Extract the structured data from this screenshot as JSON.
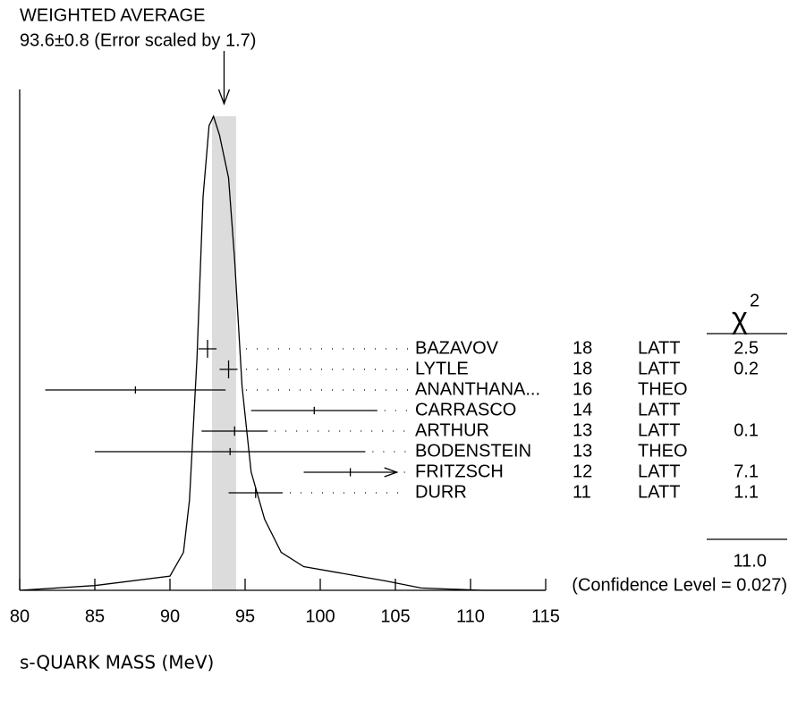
{
  "chart_data": {
    "type": "ideogram",
    "title": "WEIGHTED AVERAGE",
    "subtitle": "93.6±0.8 (Error scaled by 1.7)",
    "average": {
      "value": 93.6,
      "error": 0.8
    },
    "xlabel": "s-QUARK MASS (MeV)",
    "xlim": [
      80,
      115
    ],
    "xticks": [
      80,
      85,
      90,
      95,
      100,
      105,
      110,
      115
    ],
    "ylim": [
      0,
      1
    ],
    "curve": {
      "x": [
        80,
        85,
        90,
        90.9,
        91.3,
        91.8,
        92.2,
        92.6,
        92.9,
        93.3,
        93.9,
        94.3,
        94.8,
        95.4,
        96.3,
        97.4,
        98.9,
        100.7,
        102.5,
        104.3,
        106.7,
        110.8,
        115
      ],
      "y": [
        0.0,
        0.01,
        0.03,
        0.08,
        0.19,
        0.49,
        0.83,
        0.98,
        1.0,
        0.96,
        0.87,
        0.7,
        0.43,
        0.25,
        0.15,
        0.08,
        0.05,
        0.04,
        0.03,
        0.02,
        0.005,
        0.0,
        0.0
      ]
    },
    "chi2_header": "χ",
    "chi2_power": "2",
    "measurements": [
      {
        "name": "BAZAVOV",
        "value": 92.5,
        "error": 0.6,
        "year": 18,
        "tech": "LATT",
        "chi2": 2.5
      },
      {
        "name": "LYTLE",
        "value": 93.9,
        "error": 0.6,
        "year": 18,
        "tech": "LATT",
        "chi2": 0.2
      },
      {
        "name": "ANANTHANA...",
        "value": 87.7,
        "error": 6.0,
        "year": 16,
        "tech": "THEO",
        "chi2": null
      },
      {
        "name": "CARRASCO",
        "value": 99.6,
        "error": 4.2,
        "year": 14,
        "tech": "LATT",
        "chi2": null
      },
      {
        "name": "ARTHUR",
        "value": 94.3,
        "error": 2.2,
        "year": 13,
        "tech": "LATT",
        "chi2": 0.1
      },
      {
        "name": "BODENSTEIN",
        "value": 94.0,
        "error": 9.0,
        "year": 13,
        "tech": "THEO",
        "chi2": null
      },
      {
        "name": "FRITZSCH",
        "value": 102.0,
        "error": 3.1,
        "year": 12,
        "tech": "LATT",
        "chi2": 7.1,
        "arrow": true
      },
      {
        "name": "DURR",
        "value": 95.7,
        "error": 1.8,
        "year": 11,
        "tech": "LATT",
        "chi2": 1.1
      }
    ],
    "chi2_total": {
      "value": 11,
      "label": "11.0"
    },
    "confidence": "(Confidence Level = 0.027)"
  }
}
